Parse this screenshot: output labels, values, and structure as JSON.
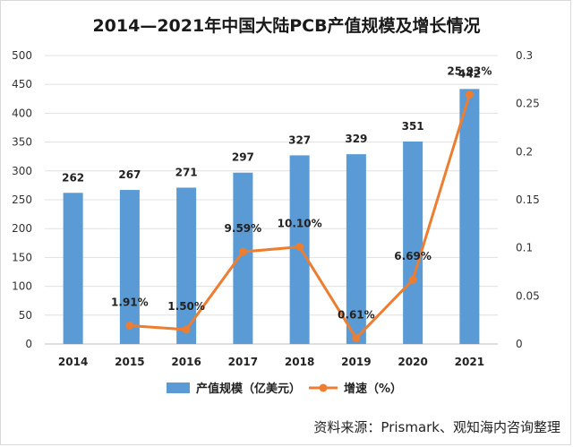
{
  "title": "2014—2021年中国大陆PCB产值规模及增长情况",
  "source": "资料来源：Prismark、观知海内咨询整理",
  "chart_data": {
    "type": "bar",
    "title": "2014—2021年中国大陆PCB产值规模及增长情况",
    "categories": [
      "2014",
      "2015",
      "2016",
      "2017",
      "2018",
      "2019",
      "2020",
      "2021"
    ],
    "series": [
      {
        "name": "产值规模（亿美元）",
        "type": "bar",
        "axis": "left",
        "color": "#5b9bd5",
        "values": [
          262,
          267,
          271,
          297,
          327,
          329,
          351,
          442
        ],
        "labels": [
          "262",
          "267",
          "271",
          "297",
          "327",
          "329",
          "351",
          "442"
        ]
      },
      {
        "name": "增速（%）",
        "type": "line",
        "axis": "right",
        "color": "#ed7d31",
        "values": [
          null,
          0.0191,
          0.015,
          0.0959,
          0.101,
          0.0061,
          0.0669,
          0.2593
        ],
        "labels": [
          "",
          "1.91%",
          "1.50%",
          "9.59%",
          "10.10%",
          "0.61%",
          "6.69%",
          "25.93%"
        ]
      }
    ],
    "y_left": {
      "min": 0,
      "max": 500,
      "ticks": [
        "0",
        "50",
        "100",
        "150",
        "200",
        "250",
        "300",
        "350",
        "400",
        "450",
        "500"
      ]
    },
    "y_right": {
      "min": 0,
      "max": 0.3,
      "ticks": [
        "0",
        "0.05",
        "0.1",
        "0.15",
        "0.2",
        "0.25",
        "0.3"
      ]
    },
    "grid": "horizontal",
    "legend": "bottom"
  }
}
